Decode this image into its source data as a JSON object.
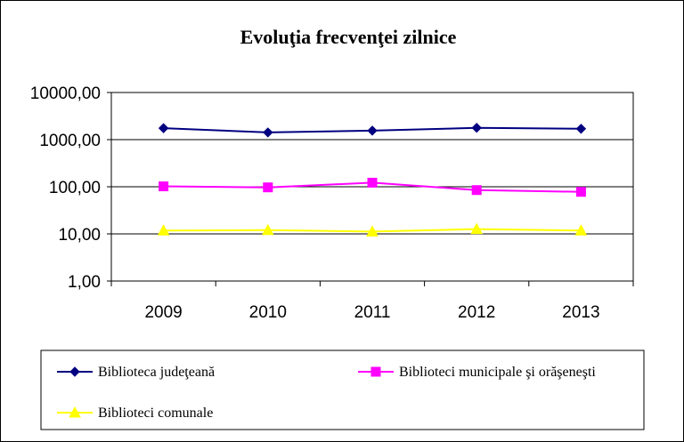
{
  "chart_data": {
    "type": "line",
    "title": "Evoluţia frecvenţei zilnice",
    "xlabel": "",
    "ylabel": "",
    "y_scale": "log",
    "ylim": [
      1,
      10000
    ],
    "y_ticks": [
      "1,00",
      "10,00",
      "100,00",
      "1000,00",
      "10000,00"
    ],
    "categories": [
      "2009",
      "2010",
      "2011",
      "2012",
      "2013"
    ],
    "grid": true,
    "legend_position": "bottom",
    "series": [
      {
        "name": "Biblioteca judeţeană",
        "values": [
          1750,
          1420,
          1550,
          1780,
          1700
        ],
        "color": "#000080",
        "marker": "diamond"
      },
      {
        "name": "Biblioteci municipale şi orăşeneşti",
        "values": [
          102,
          97,
          122,
          85,
          78
        ],
        "color": "#ff00ff",
        "marker": "square"
      },
      {
        "name": "Biblioteci comunale",
        "values": [
          11.8,
          12.0,
          11.2,
          12.6,
          11.8
        ],
        "color": "#ffff00",
        "marker": "triangle"
      }
    ]
  }
}
